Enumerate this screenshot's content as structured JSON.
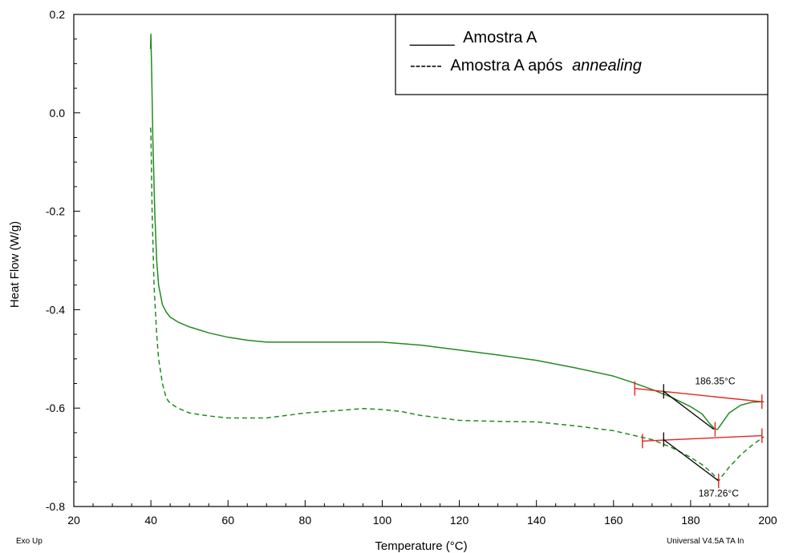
{
  "chart_data": {
    "type": "line",
    "xlabel": "Temperature (°C)",
    "ylabel": "Heat Flow (W/g)",
    "xlim": [
      20,
      200
    ],
    "ylim": [
      -0.8,
      0.2
    ],
    "x_ticks": [
      "20",
      "40",
      "60",
      "80",
      "100",
      "120",
      "140",
      "160",
      "180",
      "200"
    ],
    "y_ticks": [
      "0.2",
      "0.0",
      "-0.2",
      "-0.4",
      "-0.6",
      "-0.8"
    ],
    "footer_left": "Exo Up",
    "footer_right": "Universal V4.5A TA In",
    "legend": {
      "solid_marker": "_____",
      "solid_label": "Amostra A",
      "dashed_marker": "------",
      "dashed_label_plain": "Amostra A após",
      "dashed_label_italic": "annealing"
    },
    "series": [
      {
        "name": "Amostra A",
        "style": "solid",
        "color": "#228B22",
        "x": [
          39.9,
          40.0,
          40.2,
          40.5,
          41.0,
          41.5,
          42,
          43,
          44,
          45,
          47,
          50,
          55,
          60,
          65,
          70,
          80,
          90,
          100,
          105,
          110,
          120,
          130,
          140,
          150,
          160,
          165,
          170,
          175,
          180,
          183,
          185,
          186.35,
          187,
          188,
          190,
          193,
          196,
          199
        ],
        "y": [
          0.13,
          0.16,
          0.08,
          -0.05,
          -0.2,
          -0.3,
          -0.35,
          -0.39,
          -0.405,
          -0.415,
          -0.425,
          -0.435,
          -0.447,
          -0.456,
          -0.462,
          -0.466,
          -0.466,
          -0.466,
          -0.466,
          -0.469,
          -0.472,
          -0.482,
          -0.492,
          -0.503,
          -0.518,
          -0.535,
          -0.548,
          -0.562,
          -0.578,
          -0.597,
          -0.612,
          -0.632,
          -0.643,
          -0.643,
          -0.632,
          -0.61,
          -0.594,
          -0.588,
          -0.587
        ]
      },
      {
        "name": "Amostra A após annealing",
        "style": "dashed",
        "color": "#228B22",
        "x": [
          39.9,
          40.0,
          40.3,
          40.8,
          41.5,
          42,
          43,
          44,
          45,
          47,
          50,
          55,
          60,
          65,
          70,
          75,
          80,
          90,
          95,
          100,
          105,
          110,
          120,
          130,
          140,
          150,
          160,
          165,
          170,
          175,
          180,
          183,
          185,
          186,
          187.26,
          188,
          190,
          193,
          196,
          199
        ],
        "y": [
          -0.03,
          -0.04,
          -0.2,
          -0.35,
          -0.45,
          -0.5,
          -0.55,
          -0.58,
          -0.59,
          -0.6,
          -0.61,
          -0.616,
          -0.62,
          -0.62,
          -0.62,
          -0.615,
          -0.61,
          -0.604,
          -0.601,
          -0.603,
          -0.607,
          -0.615,
          -0.625,
          -0.627,
          -0.628,
          -0.636,
          -0.646,
          -0.655,
          -0.664,
          -0.68,
          -0.7,
          -0.715,
          -0.728,
          -0.736,
          -0.748,
          -0.74,
          -0.72,
          -0.695,
          -0.675,
          -0.658
        ]
      }
    ],
    "annotations": [
      {
        "label": "186.35°C",
        "peak_x": 186.35,
        "peak_y": -0.643,
        "baseline": {
          "x": [
            165.5,
            198.5
          ],
          "y": [
            -0.56,
            -0.587
          ]
        },
        "onset": {
          "x": [
            173,
            186
          ],
          "y": [
            -0.566,
            -0.643
          ]
        },
        "label_pos": {
          "x": 186.35,
          "y": -0.552
        }
      },
      {
        "label": "187.26°C",
        "peak_x": 187.26,
        "peak_y": -0.748,
        "baseline": {
          "x": [
            167.5,
            198.5
          ],
          "y": [
            -0.667,
            -0.656
          ]
        },
        "onset": {
          "x": [
            173,
            187.26
          ],
          "y": [
            -0.664,
            -0.748
          ]
        },
        "label_pos": {
          "x": 187.26,
          "y": -0.78
        }
      }
    ]
  }
}
